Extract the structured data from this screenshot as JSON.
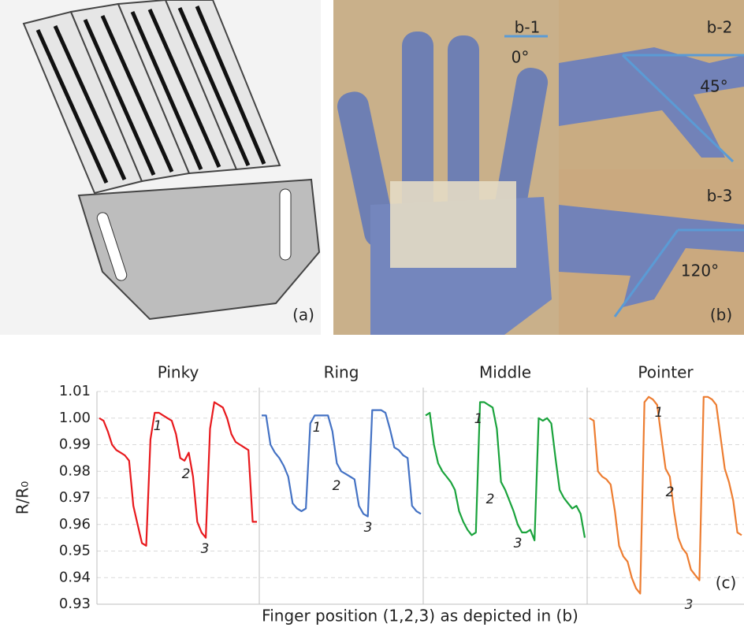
{
  "figure": {
    "panel_a": {
      "label": "(a)"
    },
    "panel_b": {
      "label": "(b)",
      "views": [
        {
          "name": "b-1",
          "angle": "0°"
        },
        {
          "name": "b-2",
          "angle": "45°"
        },
        {
          "name": "b-3",
          "angle": "120°"
        }
      ]
    }
  },
  "chart_data": {
    "type": "line",
    "ylabel": "R/R₀",
    "xlabel": "Finger position (1,2,3) as depicted in (b)",
    "corner_label": "(c)",
    "ylim": [
      0.93,
      1.01
    ],
    "yticks": [
      0.93,
      0.94,
      0.95,
      0.96,
      0.97,
      0.98,
      0.99,
      {
        "value": 1,
        "label": "1.00"
      },
      1.01
    ],
    "grid": true,
    "panels": [
      {
        "title": "Pinky",
        "color": "#e8191d",
        "annotations": [
          "1",
          "2",
          "3"
        ],
        "values": [
          1.0,
          0.999,
          0.995,
          0.99,
          0.988,
          0.987,
          0.986,
          0.984,
          0.967,
          0.96,
          0.953,
          0.952,
          0.992,
          1.002,
          1.002,
          1.001,
          1.0,
          0.999,
          0.994,
          0.985,
          0.984,
          0.987,
          0.978,
          0.961,
          0.957,
          0.955,
          0.996,
          1.006,
          1.005,
          1.004,
          1.0,
          0.994,
          0.991,
          0.99,
          0.989,
          0.988,
          0.961,
          0.961
        ]
      },
      {
        "title": "Ring",
        "color": "#4472c4",
        "annotations": [
          "1",
          "2",
          "3"
        ],
        "values": [
          1.001,
          1.001,
          0.99,
          0.987,
          0.985,
          0.982,
          0.978,
          0.968,
          0.966,
          0.965,
          0.966,
          0.998,
          1.001,
          1.001,
          1.001,
          1.001,
          0.995,
          0.983,
          0.98,
          0.979,
          0.978,
          0.977,
          0.967,
          0.964,
          0.963,
          1.003,
          1.003,
          1.003,
          1.002,
          0.996,
          0.989,
          0.988,
          0.986,
          0.985,
          0.967,
          0.965,
          0.964
        ]
      },
      {
        "title": "Middle",
        "color": "#1aa33c",
        "annotations": [
          "1",
          "2",
          "3"
        ],
        "values": [
          1.001,
          1.002,
          0.99,
          0.983,
          0.98,
          0.978,
          0.976,
          0.973,
          0.965,
          0.961,
          0.958,
          0.956,
          0.957,
          1.006,
          1.006,
          1.005,
          1.004,
          0.996,
          0.976,
          0.973,
          0.969,
          0.965,
          0.96,
          0.957,
          0.957,
          0.958,
          0.954,
          1.0,
          0.999,
          1.0,
          0.998,
          0.985,
          0.973,
          0.97,
          0.968,
          0.966,
          0.967,
          0.964,
          0.955
        ]
      },
      {
        "title": "Pointer",
        "color": "#ed7d31",
        "annotations": [
          "1",
          "2",
          "3"
        ],
        "values": [
          1.0,
          0.999,
          0.98,
          0.978,
          0.977,
          0.975,
          0.965,
          0.952,
          0.948,
          0.946,
          0.94,
          0.936,
          0.934,
          1.006,
          1.008,
          1.007,
          1.005,
          0.993,
          0.981,
          0.978,
          0.965,
          0.955,
          0.951,
          0.949,
          0.943,
          0.941,
          0.939,
          1.008,
          1.008,
          1.007,
          1.005,
          0.993,
          0.981,
          0.976,
          0.969,
          0.957,
          0.956
        ]
      }
    ]
  }
}
